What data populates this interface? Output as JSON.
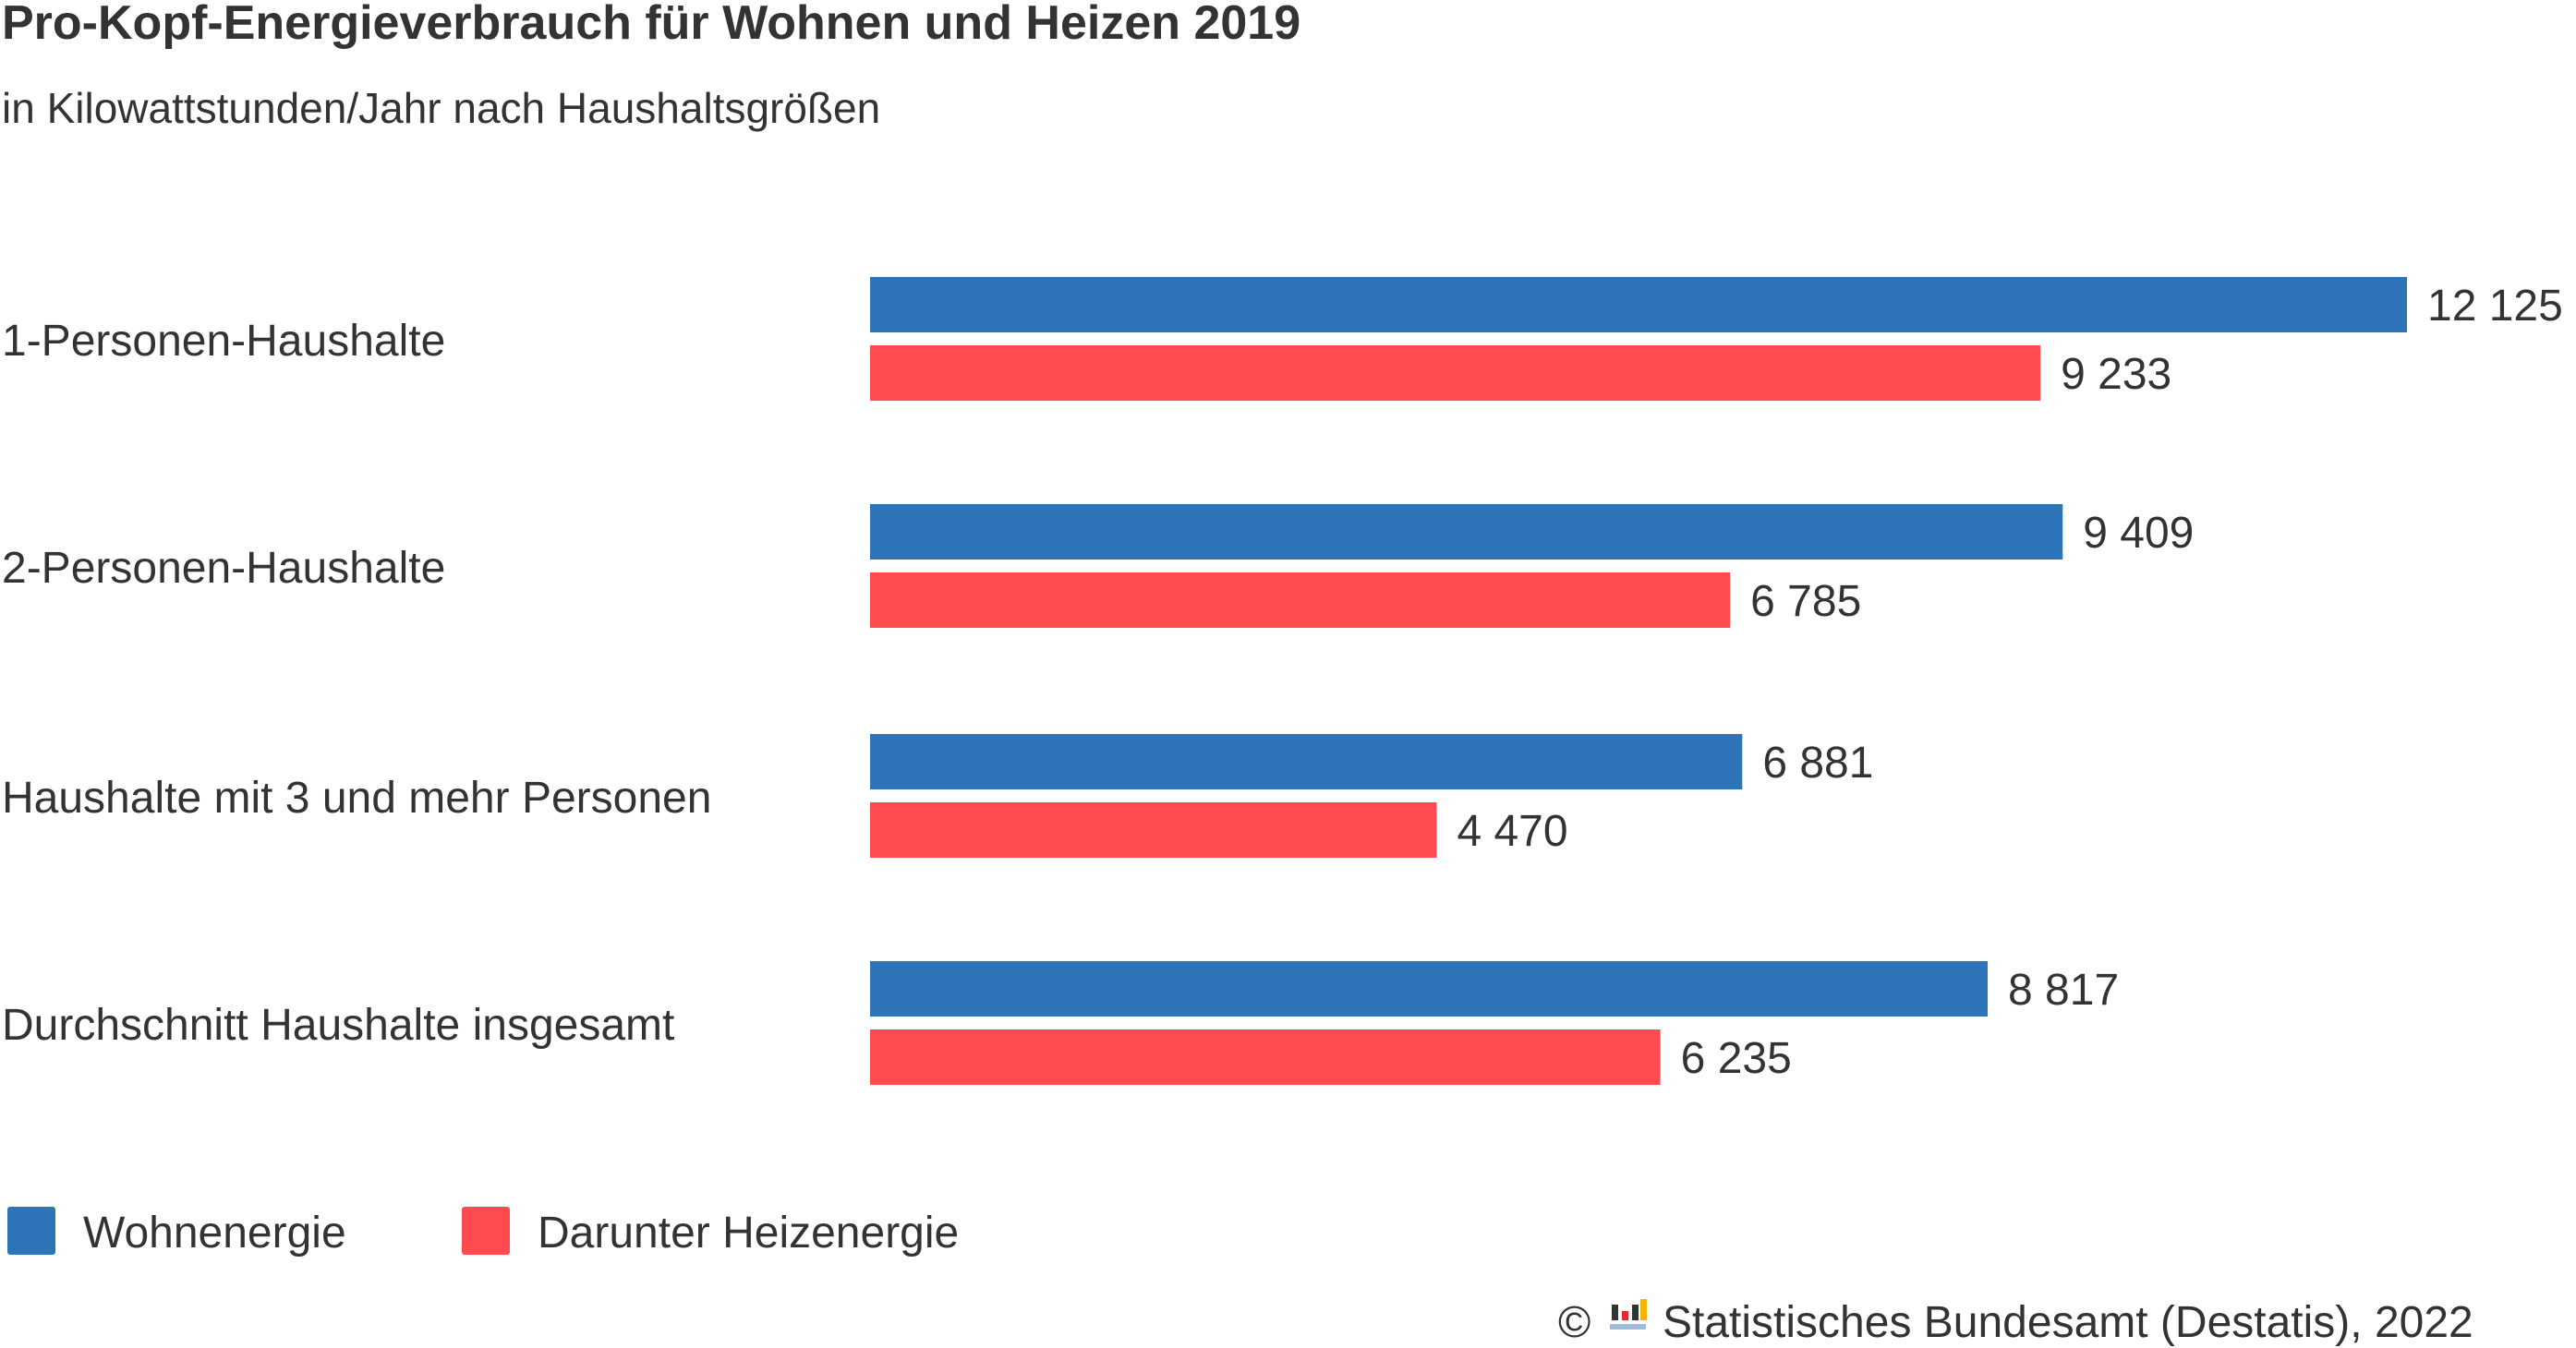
{
  "chart_data": {
    "type": "bar",
    "orientation": "horizontal",
    "title": "Pro-Kopf-Energieverbrauch für Wohnen und Heizen 2019",
    "subtitle": "in Kilowattstunden/Jahr nach Haushaltsgrößen",
    "categories": [
      "1-Personen-Haushalte",
      "2-Personen-Haushalte",
      "Haushalte mit 3 und mehr Personen",
      "Durchschnitt Haushalte insgesamt"
    ],
    "series": [
      {
        "name": "Wohnenergie",
        "color": "#2e74b8",
        "values": [
          12125,
          9409,
          6881,
          8817
        ],
        "labels": [
          "12 125",
          "9 409",
          "6 881",
          "8 817"
        ]
      },
      {
        "name": "Darunter Heizenergie",
        "color": "#ff4a50",
        "values": [
          9233,
          6785,
          4470,
          6235
        ],
        "labels": [
          "9 233",
          "6 785",
          "4 470",
          "6 235"
        ]
      }
    ],
    "xlim": [
      0,
      12125
    ],
    "grid": false,
    "legend_position": "bottom-left"
  },
  "footer": {
    "copyright_symbol": "©",
    "logo_icon": "destatis-logo-icon",
    "source": "Statistisches Bundesamt (Destatis), 2022"
  }
}
